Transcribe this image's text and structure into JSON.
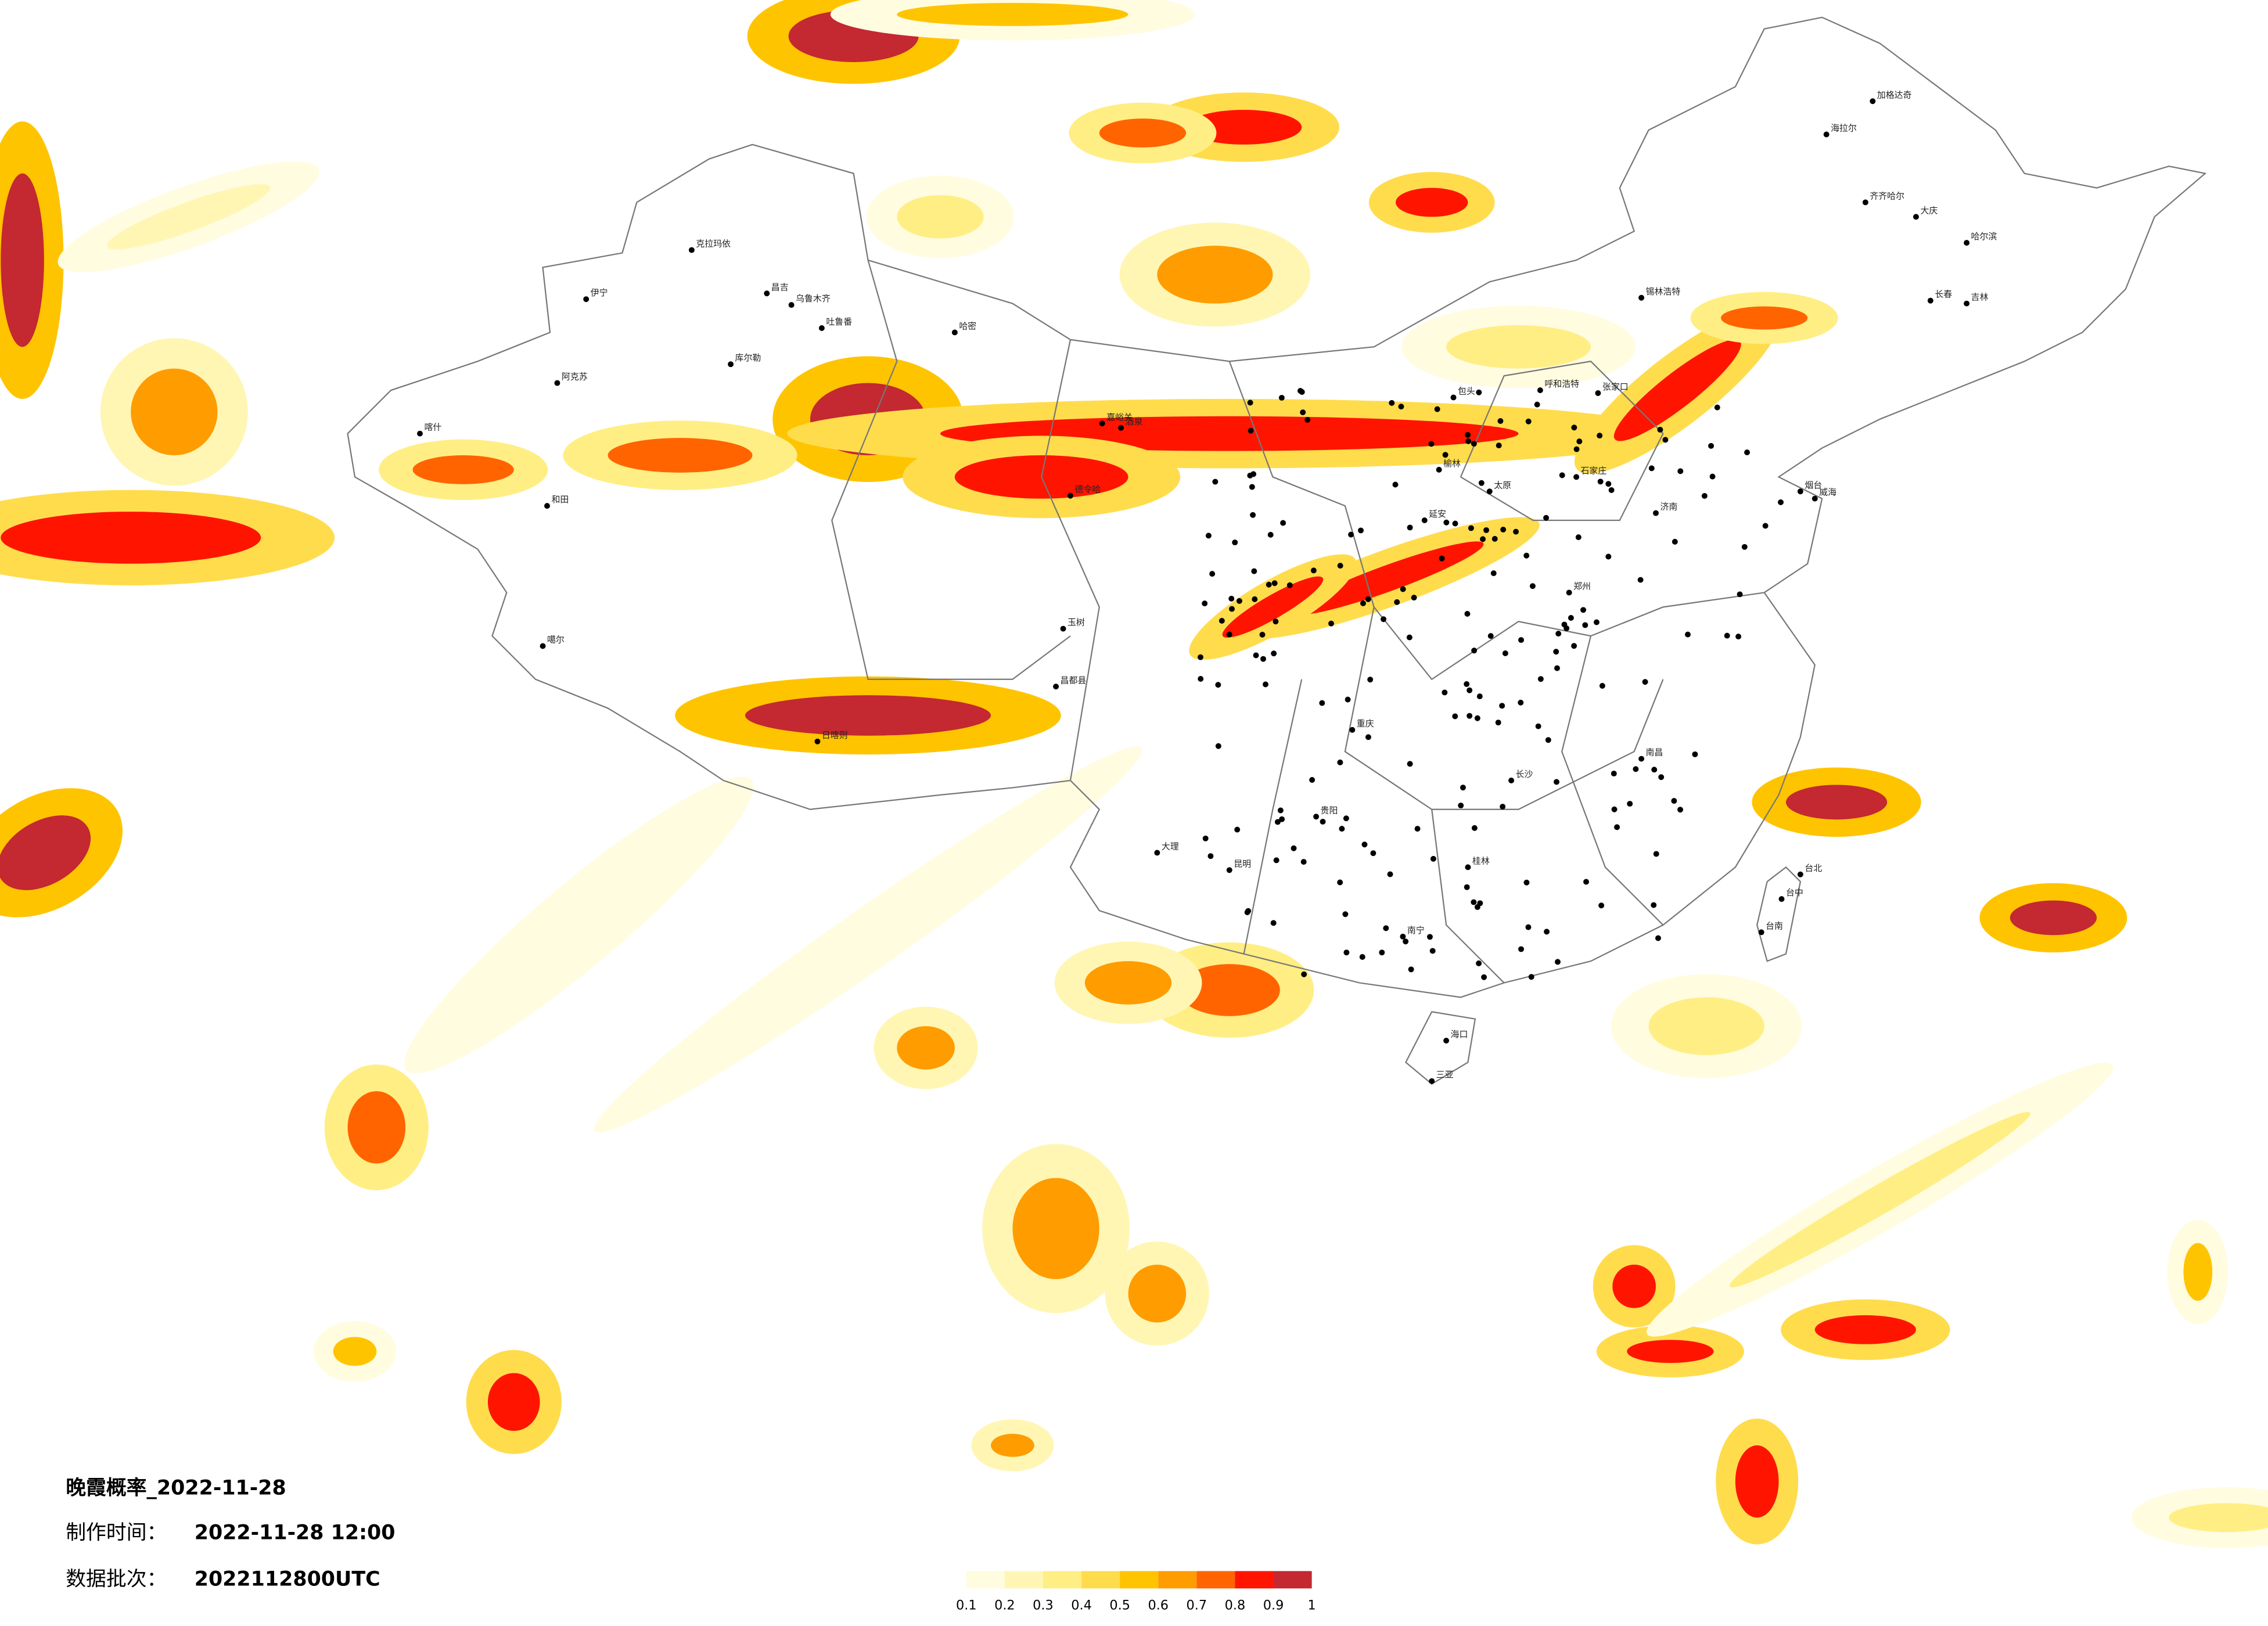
{
  "info": {
    "title": "晚霞概率_2022-11-28",
    "made_label": "制作时间：",
    "made_value": "2022-11-28 12:00",
    "batch_label": "数据批次：",
    "batch_value": "2022112800UTC"
  },
  "legend": {
    "ticks": [
      0.1,
      0.2,
      0.3,
      0.4,
      0.5,
      0.6,
      0.7,
      0.8,
      0.9,
      1
    ],
    "colors": [
      "#fffce0",
      "#fff6b4",
      "#ffee84",
      "#ffdc4c",
      "#ffc400",
      "#ff9c00",
      "#ff6400",
      "#ff1400",
      "#c42830"
    ]
  },
  "cities": [
    "克拉玛依",
    "伊宁",
    "昌吉",
    "乌鲁木齐",
    "吐鲁番",
    "哈密",
    "库尔勒",
    "阿克苏",
    "喀什",
    "和田",
    "噶尔",
    "日喀则",
    "昌都县",
    "玉树",
    "嘉峪关",
    "酒泉",
    "德令哈",
    "海拉尔",
    "加格达奇",
    "齐齐哈尔",
    "大庆",
    "哈尔滨",
    "长春",
    "吉林",
    "锡林浩特",
    "呼和浩特",
    "包头",
    "张家口",
    "石家庄",
    "太原",
    "济南",
    "烟台",
    "威海",
    "郑州",
    "延安",
    "榆林",
    "重庆",
    "贵阳",
    "昆明",
    "大理",
    "南宁",
    "桂林",
    "长沙",
    "南昌",
    "台北",
    "台中",
    "台南",
    "海口",
    "三亚"
  ]
}
